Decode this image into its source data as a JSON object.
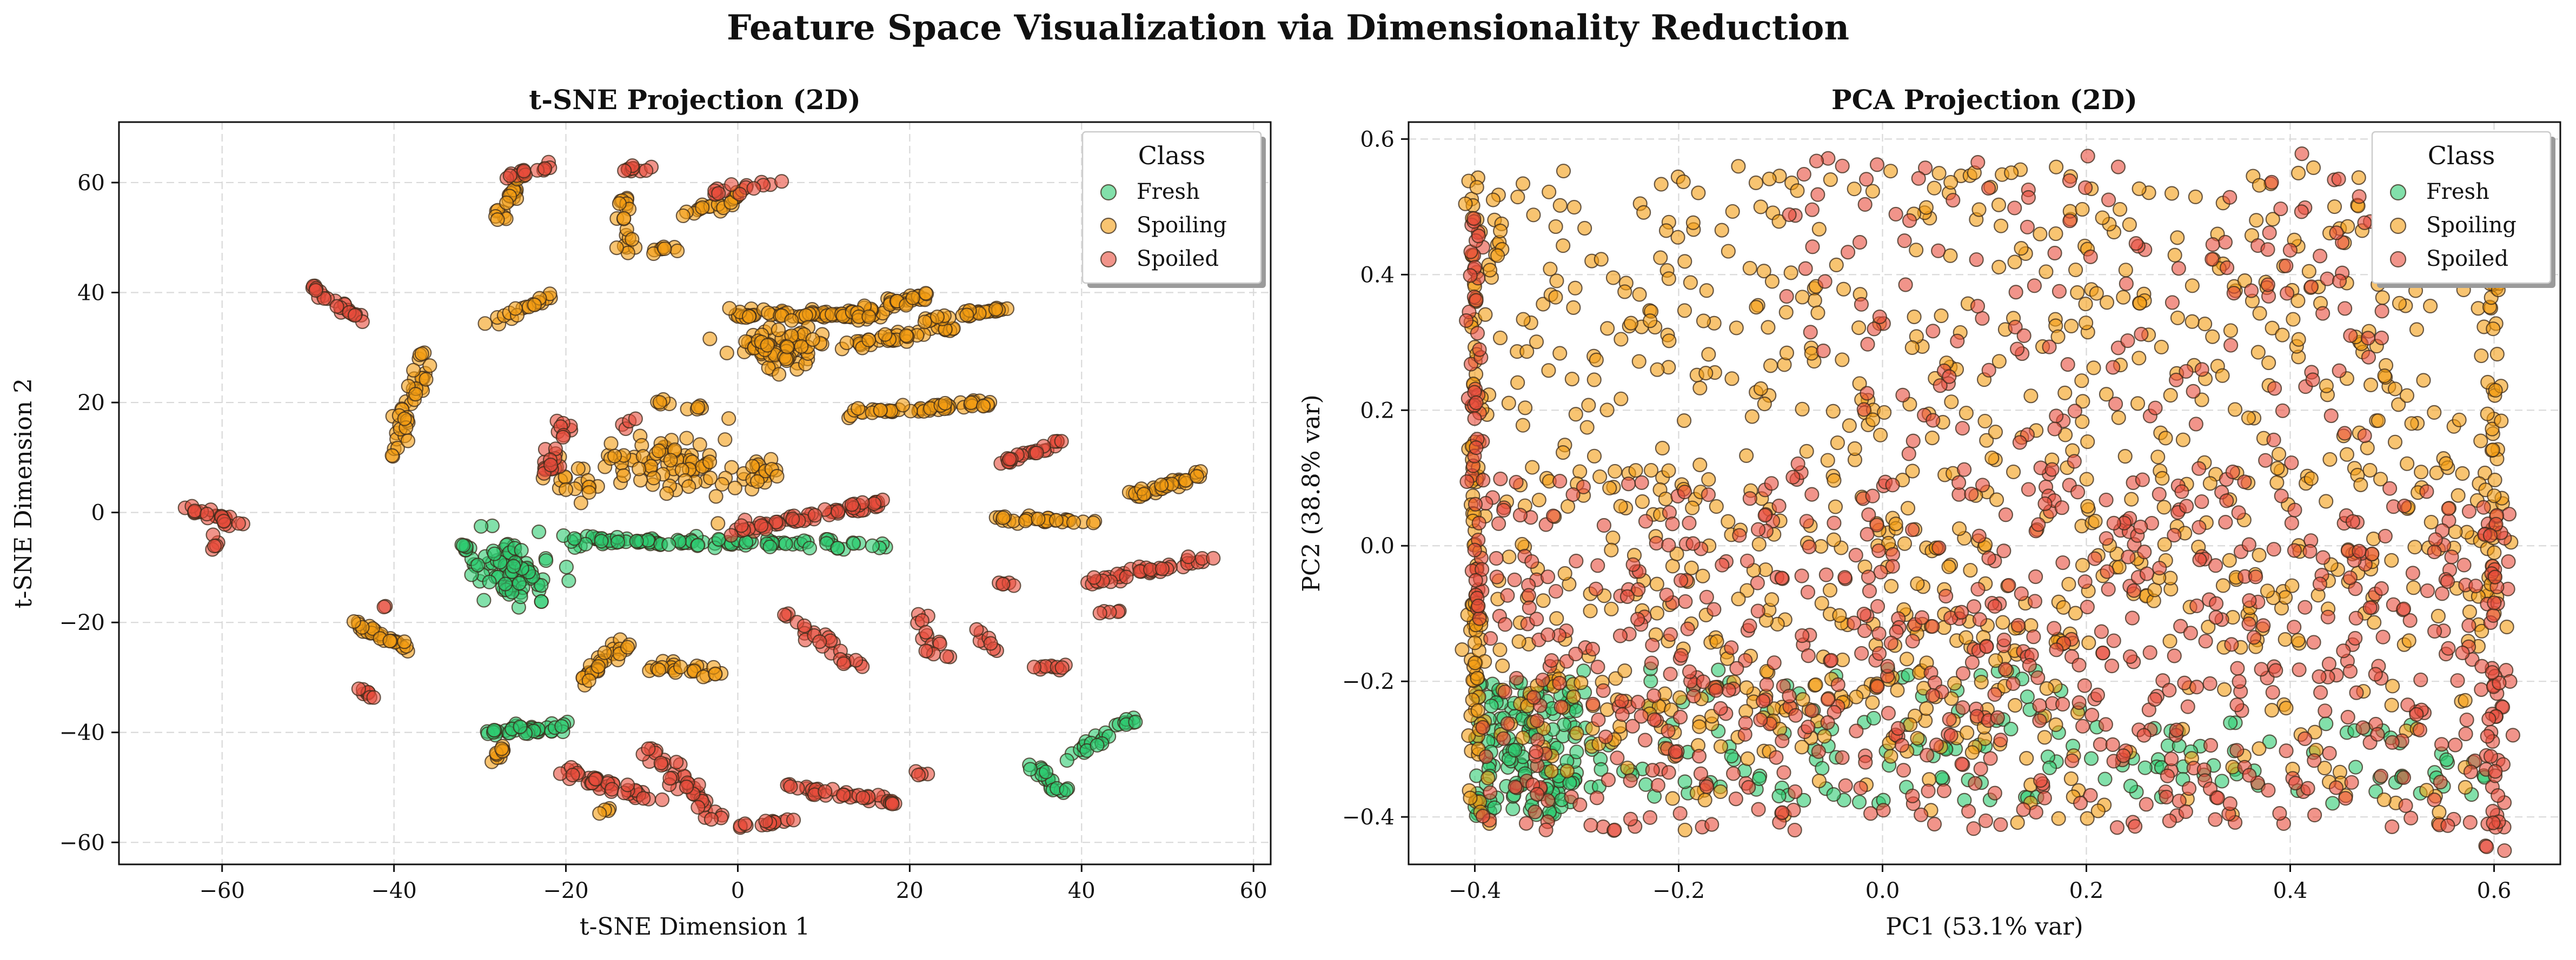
{
  "figure": {
    "title": "Feature Space Visualization via Dimensionality Reduction"
  },
  "chart_data": [
    {
      "type": "scatter",
      "title": "t-SNE Projection (2D)",
      "xlabel": "t-SNE Dimension 1",
      "ylabel": "t-SNE Dimension 2",
      "xlim": [
        -72,
        62
      ],
      "ylim": [
        -64,
        71
      ],
      "xticks": [
        -60,
        -40,
        -20,
        0,
        20,
        40,
        60
      ],
      "yticks": [
        -60,
        -40,
        -20,
        0,
        20,
        40,
        60
      ],
      "grid": true,
      "legend": {
        "title": "Class",
        "placement": "top-right"
      },
      "series": [
        {
          "name": "Fresh",
          "color": "#2ecc71",
          "clusters": [
            {
              "kind": "blob",
              "c": [
                -26,
                -11
              ],
              "s": [
                2.5,
                2.8
              ],
              "n": 90
            },
            {
              "kind": "blob",
              "c": [
                -32,
                -6
              ],
              "s": [
                0.4,
                0.4
              ],
              "n": 4
            },
            {
              "kind": "seg",
              "from": [
                -20,
                -5
              ],
              "to": [
                18,
                -6
              ],
              "jit": 0.9,
              "n": 100
            },
            {
              "kind": "seg",
              "from": [
                -29,
                -40
              ],
              "to": [
                -20,
                -39
              ],
              "jit": 1.2,
              "n": 40
            },
            {
              "kind": "seg",
              "from": [
                34,
                -46
              ],
              "to": [
                38,
                -51
              ],
              "jit": 1.0,
              "n": 20
            },
            {
              "kind": "seg",
              "from": [
                38,
                -45
              ],
              "to": [
                46,
                -38
              ],
              "jit": 1.0,
              "n": 25
            }
          ]
        },
        {
          "name": "Spoiling",
          "color": "#f39c12",
          "clusters": [
            {
              "kind": "seg",
              "from": [
                -28,
                53
              ],
              "to": [
                -25,
                62
              ],
              "jit": 0.8,
              "n": 25
            },
            {
              "kind": "seg",
              "from": [
                -13,
                47
              ],
              "to": [
                -13,
                57
              ],
              "jit": 1.0,
              "n": 20
            },
            {
              "kind": "seg",
              "from": [
                -10,
                48
              ],
              "to": [
                -7,
                48
              ],
              "jit": 0.5,
              "n": 8
            },
            {
              "kind": "seg",
              "from": [
                -7,
                54
              ],
              "to": [
                -2,
                56
              ],
              "jit": 0.7,
              "n": 10
            },
            {
              "kind": "seg",
              "from": [
                -2,
                55
              ],
              "to": [
                1,
                59
              ],
              "jit": 0.7,
              "n": 12
            },
            {
              "kind": "seg",
              "from": [
                -30,
                34
              ],
              "to": [
                -22,
                39
              ],
              "jit": 0.8,
              "n": 20
            },
            {
              "kind": "seg",
              "from": [
                -36,
                30
              ],
              "to": [
                -40,
                10
              ],
              "jit": 1.2,
              "n": 40
            },
            {
              "kind": "seg",
              "from": [
                -1,
                36
              ],
              "to": [
                16,
                36
              ],
              "jit": 0.9,
              "n": 60
            },
            {
              "kind": "blob",
              "c": [
                5,
                30
              ],
              "s": [
                2.5,
                2.0
              ],
              "n": 70
            },
            {
              "kind": "seg",
              "from": [
                12,
                35
              ],
              "to": [
                22,
                40
              ],
              "jit": 1.0,
              "n": 40
            },
            {
              "kind": "seg",
              "from": [
                12,
                30
              ],
              "to": [
                26,
                34
              ],
              "jit": 1.0,
              "n": 40
            },
            {
              "kind": "seg",
              "from": [
                22,
                35
              ],
              "to": [
                31,
                37
              ],
              "jit": 0.8,
              "n": 30
            },
            {
              "kind": "seg",
              "from": [
                13,
                18
              ],
              "to": [
                30,
                20
              ],
              "jit": 0.8,
              "n": 50
            },
            {
              "kind": "seg",
              "from": [
                -10,
                20
              ],
              "to": [
                -4,
                19
              ],
              "jit": 0.6,
              "n": 10
            },
            {
              "kind": "blob",
              "c": [
                -7,
                9
              ],
              "s": [
                3.5,
                3.0
              ],
              "n": 60
            },
            {
              "kind": "blob",
              "c": [
                2,
                7
              ],
              "s": [
                2.0,
                2.0
              ],
              "n": 20
            },
            {
              "kind": "blob",
              "c": [
                -18,
                6
              ],
              "s": [
                2.0,
                2.0
              ],
              "n": 20
            },
            {
              "kind": "blob",
              "c": [
                -14,
                9
              ],
              "s": [
                1.0,
                2.0
              ],
              "n": 10
            },
            {
              "kind": "seg",
              "from": [
                46,
                3
              ],
              "to": [
                54,
                7
              ],
              "jit": 0.8,
              "n": 35
            },
            {
              "kind": "seg",
              "from": [
                30,
                -1
              ],
              "to": [
                42,
                -2
              ],
              "jit": 0.6,
              "n": 30
            },
            {
              "kind": "seg",
              "from": [
                -45,
                -20
              ],
              "to": [
                -38,
                -25
              ],
              "jit": 0.8,
              "n": 30
            },
            {
              "kind": "seg",
              "from": [
                -18,
                -30
              ],
              "to": [
                -13,
                -24
              ],
              "jit": 1.2,
              "n": 30
            },
            {
              "kind": "seg",
              "from": [
                -10,
                -28
              ],
              "to": [
                -3,
                -29
              ],
              "jit": 1.2,
              "n": 25
            },
            {
              "kind": "seg",
              "from": [
                -29,
                -45
              ],
              "to": [
                -27,
                -43
              ],
              "jit": 0.8,
              "n": 10
            },
            {
              "kind": "seg",
              "from": [
                -16,
                -55
              ],
              "to": [
                -15,
                -54
              ],
              "jit": 0.5,
              "n": 4
            }
          ]
        },
        {
          "name": "Spoiled",
          "color": "#e74c3c",
          "clusters": [
            {
              "kind": "seg",
              "from": [
                -27,
                61
              ],
              "to": [
                -22,
                63
              ],
              "jit": 0.8,
              "n": 15
            },
            {
              "kind": "seg",
              "from": [
                -14,
                62
              ],
              "to": [
                -10,
                63
              ],
              "jit": 0.8,
              "n": 10
            },
            {
              "kind": "seg",
              "from": [
                -3,
                58
              ],
              "to": [
                5,
                60
              ],
              "jit": 0.8,
              "n": 15
            },
            {
              "kind": "seg",
              "from": [
                -50,
                41
              ],
              "to": [
                -44,
                35
              ],
              "jit": 0.7,
              "n": 25
            },
            {
              "kind": "seg",
              "from": [
                -65,
                1
              ],
              "to": [
                -58,
                -2
              ],
              "jit": 0.8,
              "n": 25
            },
            {
              "kind": "seg",
              "from": [
                -61,
                -4
              ],
              "to": [
                -61,
                -7
              ],
              "jit": 0.4,
              "n": 5
            },
            {
              "kind": "seg",
              "from": [
                -22,
                7
              ],
              "to": [
                -20,
                16
              ],
              "jit": 1.2,
              "n": 25
            },
            {
              "kind": "blob",
              "c": [
                -13,
                16
              ],
              "s": [
                0.5,
                0.6
              ],
              "n": 4
            },
            {
              "kind": "seg",
              "from": [
                0,
                -3
              ],
              "to": [
                18,
                2
              ],
              "jit": 1.2,
              "n": 60
            },
            {
              "kind": "seg",
              "from": [
                31,
                9
              ],
              "to": [
                38,
                13
              ],
              "jit": 0.6,
              "n": 25
            },
            {
              "kind": "seg",
              "from": [
                40,
                -13
              ],
              "to": [
                56,
                -8
              ],
              "jit": 0.8,
              "n": 40
            },
            {
              "kind": "seg",
              "from": [
                -41,
                -17
              ],
              "to": [
                -41,
                -17
              ],
              "jit": 0.3,
              "n": 2
            },
            {
              "kind": "seg",
              "from": [
                -44,
                -32
              ],
              "to": [
                -42,
                -34
              ],
              "jit": 0.5,
              "n": 8
            },
            {
              "kind": "seg",
              "from": [
                -21,
                -47
              ],
              "to": [
                -10,
                -52
              ],
              "jit": 1.2,
              "n": 40
            },
            {
              "kind": "seg",
              "from": [
                -11,
                -42
              ],
              "to": [
                -2,
                -56
              ],
              "jit": 1.5,
              "n": 40
            },
            {
              "kind": "seg",
              "from": [
                0,
                -57
              ],
              "to": [
                7,
                -56
              ],
              "jit": 0.6,
              "n": 15
            },
            {
              "kind": "seg",
              "from": [
                6,
                -50
              ],
              "to": [
                20,
                -53
              ],
              "jit": 1.0,
              "n": 40
            },
            {
              "kind": "seg",
              "from": [
                5,
                -18
              ],
              "to": [
                14,
                -28
              ],
              "jit": 1.0,
              "n": 25
            },
            {
              "kind": "seg",
              "from": [
                21,
                -18
              ],
              "to": [
                23,
                -25
              ],
              "jit": 1.0,
              "n": 10
            },
            {
              "kind": "seg",
              "from": [
                28,
                -21
              ],
              "to": [
                30,
                -26
              ],
              "jit": 0.8,
              "n": 8
            },
            {
              "kind": "seg",
              "from": [
                33,
                -28
              ],
              "to": [
                38,
                -28
              ],
              "jit": 0.6,
              "n": 10
            },
            {
              "kind": "seg",
              "from": [
                29,
                -13
              ],
              "to": [
                33,
                -13
              ],
              "jit": 0.5,
              "n": 5
            },
            {
              "kind": "seg",
              "from": [
                42,
                -18
              ],
              "to": [
                45,
                -18
              ],
              "jit": 0.6,
              "n": 5
            },
            {
              "kind": "seg",
              "from": [
                20,
                -47
              ],
              "to": [
                22,
                -48
              ],
              "jit": 0.5,
              "n": 4
            },
            {
              "kind": "seg",
              "from": [
                21,
                -25
              ],
              "to": [
                25,
                -26
              ],
              "jit": 0.6,
              "n": 5
            }
          ]
        }
      ]
    },
    {
      "type": "scatter",
      "title": "PCA Projection (2D)",
      "xlabel": "PC1 (53.1% var)",
      "ylabel": "PC2 (38.8% var)",
      "xlim": [
        -0.465,
        0.665
      ],
      "ylim": [
        -0.47,
        0.625
      ],
      "xticks": [
        -0.4,
        -0.2,
        0.0,
        0.2,
        0.4,
        0.6
      ],
      "yticks": [
        -0.4,
        -0.2,
        0.0,
        0.2,
        0.4,
        0.6
      ],
      "grid": true,
      "legend": {
        "title": "Class",
        "placement": "top-right"
      },
      "series": [
        {
          "name": "Fresh",
          "color": "#2ecc71",
          "clusters": [
            {
              "kind": "box",
              "x": [
                -0.4,
                -0.3
              ],
              "y": [
                -0.4,
                -0.2
              ],
              "n": 150
            },
            {
              "kind": "box",
              "x": [
                -0.3,
                0.2
              ],
              "y": [
                -0.38,
                -0.18
              ],
              "n": 110
            },
            {
              "kind": "box",
              "x": [
                0.2,
                0.6
              ],
              "y": [
                -0.38,
                -0.26
              ],
              "n": 60
            }
          ]
        },
        {
          "name": "Spoiling",
          "color": "#f39c12",
          "clusters": [
            {
              "kind": "box",
              "x": [
                -0.4,
                0.6
              ],
              "y": [
                0.1,
                0.56
              ],
              "n": 450
            },
            {
              "kind": "box",
              "x": [
                -0.4,
                0.2
              ],
              "y": [
                -0.3,
                0.1
              ],
              "n": 300
            },
            {
              "kind": "box",
              "x": [
                0.2,
                0.62
              ],
              "y": [
                -0.15,
                0.1
              ],
              "n": 130
            },
            {
              "kind": "col",
              "x": -0.4,
              "y": [
                -0.4,
                0.56
              ],
              "n": 90
            },
            {
              "kind": "col",
              "x": 0.6,
              "y": [
                -0.1,
                0.4
              ],
              "n": 40
            },
            {
              "kind": "box",
              "x": [
                -0.4,
                0.6
              ],
              "y": [
                -0.42,
                -0.2
              ],
              "n": 100
            }
          ]
        },
        {
          "name": "Spoiled",
          "color": "#e74c3c",
          "clusters": [
            {
              "kind": "box",
              "x": [
                -0.4,
                0.62
              ],
              "y": [
                -0.42,
                0.1
              ],
              "n": 700
            },
            {
              "kind": "box",
              "x": [
                -0.1,
                0.5
              ],
              "y": [
                0.1,
                0.58
              ],
              "n": 160
            },
            {
              "kind": "col",
              "x": -0.4,
              "y": [
                -0.1,
                0.56
              ],
              "n": 50
            },
            {
              "kind": "col",
              "x": 0.6,
              "y": [
                -0.45,
                0.05
              ],
              "n": 40
            }
          ]
        }
      ]
    }
  ]
}
